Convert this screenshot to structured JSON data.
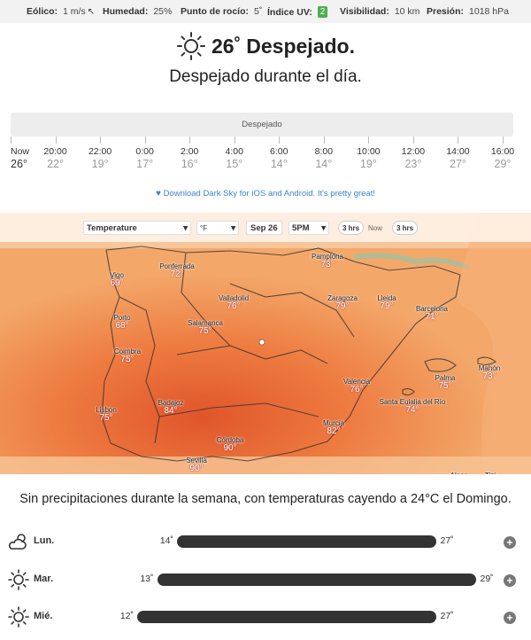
{
  "stats": {
    "wind": {
      "label": "Eólico:",
      "value": "1 m/s",
      "icon": "wind-direction-arrow-icon"
    },
    "humidity": {
      "label": "Humedad:",
      "value": "25%"
    },
    "dew": {
      "label": "Punto de rocío:",
      "value": "5˚"
    },
    "uv": {
      "label": "Índice UV:",
      "value": "2",
      "color": "#4caf50"
    },
    "visibility": {
      "label": "Visibilidad:",
      "value": "10 km"
    },
    "pressure": {
      "label": "Presión:",
      "value": "1018 hPa"
    }
  },
  "current": {
    "icon": "sun-icon",
    "temp": "26˚",
    "condition": "Despejado.",
    "summary": "Despejado durante el día."
  },
  "timeline": {
    "bar_label": "Despejado",
    "hours": [
      {
        "time": "Now",
        "temp": "26°"
      },
      {
        "time": "20:00",
        "temp": "22°"
      },
      {
        "time": "22:00",
        "temp": "19°"
      },
      {
        "time": "0:00",
        "temp": "17°"
      },
      {
        "time": "2:00",
        "temp": "16°"
      },
      {
        "time": "4:00",
        "temp": "15°"
      },
      {
        "time": "6:00",
        "temp": "14°"
      },
      {
        "time": "8:00",
        "temp": "14°"
      },
      {
        "time": "10:00",
        "temp": "19°"
      },
      {
        "time": "12:00",
        "temp": "23°"
      },
      {
        "time": "14:00",
        "temp": "27°"
      },
      {
        "time": "16:00",
        "temp": "29°"
      }
    ]
  },
  "download": {
    "icon": "heart-icon",
    "text": "Download Dark Sky for iOS and Android. It's pretty great!"
  },
  "map": {
    "layer_select": "Temperature",
    "unit": "°F",
    "date": "Sep 26",
    "time": "5PM",
    "step_back": "3 hrs",
    "now": "Now",
    "step_fwd": "3 hrs",
    "cities": [
      {
        "name": "Pamplona",
        "temp": "73°"
      },
      {
        "name": "Ponferrada",
        "temp": "72°"
      },
      {
        "name": "Vigo",
        "temp": "69°"
      },
      {
        "name": "Valladolid",
        "temp": "76°"
      },
      {
        "name": "Zaragoza",
        "temp": "79°"
      },
      {
        "name": "Lleida",
        "temp": "79°"
      },
      {
        "name": "Barcelona",
        "temp": "71°"
      },
      {
        "name": "Porto",
        "temp": "68°"
      },
      {
        "name": "Salamanca",
        "temp": "75°"
      },
      {
        "name": "Coimbra",
        "temp": "75°"
      },
      {
        "name": "Valencia",
        "temp": "76°"
      },
      {
        "name": "Palma",
        "temp": "75°"
      },
      {
        "name": "Mahón",
        "temp": "73°"
      },
      {
        "name": "Lisbon",
        "temp": "75°"
      },
      {
        "name": "Badajoz",
        "temp": "84°"
      },
      {
        "name": "Santa Eulalia del Río",
        "temp": "74°"
      },
      {
        "name": "Córdoba",
        "temp": "90°"
      },
      {
        "name": "Murcia",
        "temp": "82°"
      },
      {
        "name": "Sevilla",
        "temp": "90°"
      },
      {
        "name": "Alger",
        "temp": ""
      },
      {
        "name": "Tizi",
        "temp": ""
      }
    ]
  },
  "week": {
    "summary": "Sin precipitaciones durante la semana, con temperaturas cayendo a 24°C el Domingo.",
    "days": [
      {
        "name": "Lun.",
        "icon": "partly-cloudy-icon",
        "low": "14˚",
        "high": "27˚",
        "low_val": 14,
        "high_val": 27
      },
      {
        "name": "Mar.",
        "icon": "sun-icon",
        "low": "13˚",
        "high": "29˚",
        "low_val": 13,
        "high_val": 29
      },
      {
        "name": "Mié.",
        "icon": "sun-icon",
        "low": "12˚",
        "high": "27˚",
        "low_val": 12,
        "high_val": 27
      }
    ]
  }
}
